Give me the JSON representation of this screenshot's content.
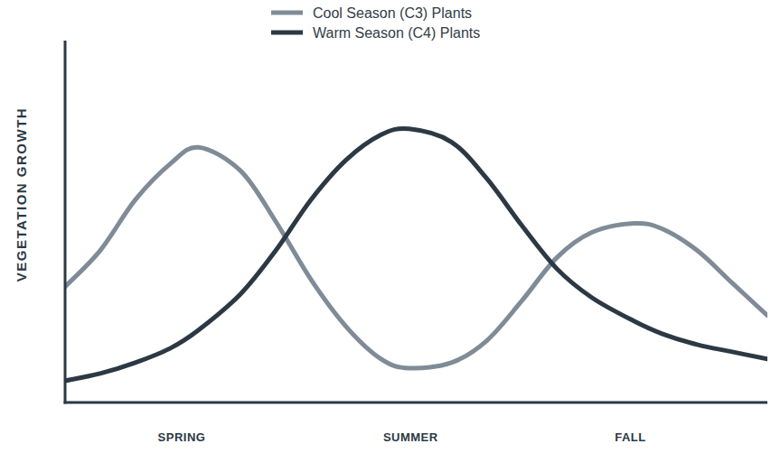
{
  "chart_data": {
    "type": "line",
    "y_label": "VEGETATION GROWTH",
    "x": [
      0,
      5,
      10,
      15,
      19,
      25,
      30,
      35,
      40,
      45,
      49,
      55,
      60,
      65,
      70,
      75,
      81,
      85,
      90,
      95,
      100
    ],
    "series": [
      {
        "name": "Cool Season (C3) Plants",
        "color": "#7f8c98",
        "values": [
          32,
          42,
          56,
          66,
          70.5,
          64,
          50,
          34,
          21,
          12,
          9.5,
          11,
          17,
          28,
          40,
          47,
          49.5,
          48,
          42,
          33,
          24
        ]
      },
      {
        "name": "Warm Season (C4) Plants",
        "color": "#2c3944",
        "values": [
          6,
          8,
          11,
          15,
          20,
          30,
          42,
          56,
          67,
          74,
          75.6,
          72,
          62,
          49,
          37,
          29,
          22.5,
          19,
          16,
          14,
          12
        ]
      }
    ],
    "xlim": [
      0,
      100
    ],
    "ylim": [
      0,
      100
    ],
    "xticks": [
      {
        "value": 16.6,
        "label": "SPRING"
      },
      {
        "value": 49.2,
        "label": "SUMMER"
      },
      {
        "value": 80.5,
        "label": "FALL"
      }
    ],
    "tick_labels": "x",
    "legend": "top",
    "grid": false
  }
}
